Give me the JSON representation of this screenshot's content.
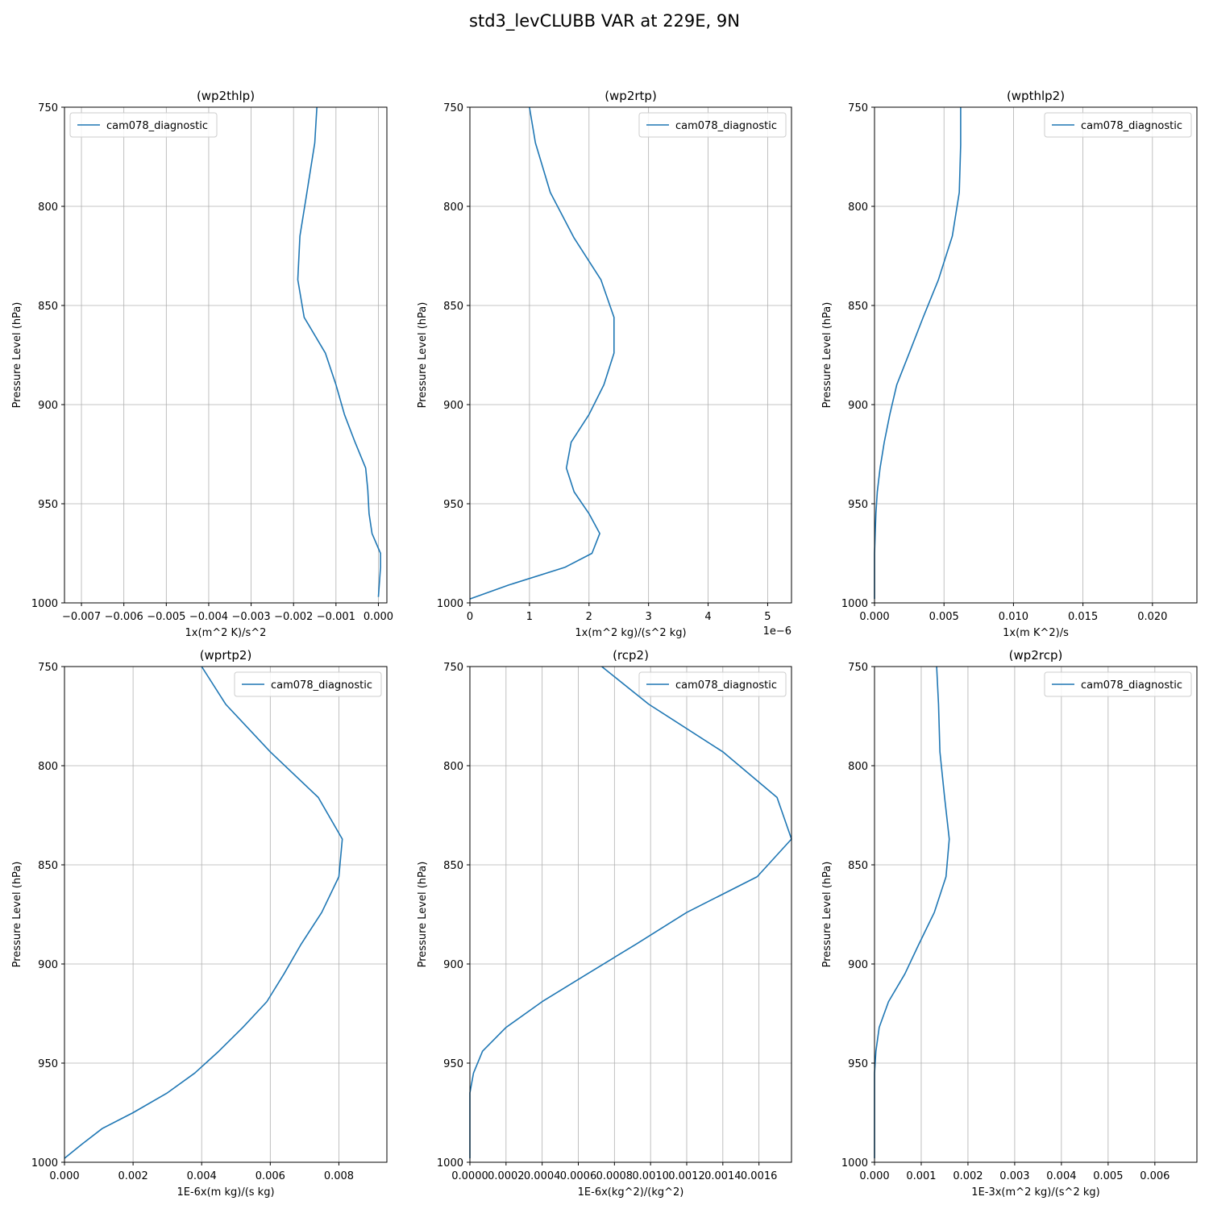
{
  "figure": {
    "title": "std3_levCLUBB VAR at 229E, 9N"
  },
  "chart_data": [
    {
      "type": "line",
      "title": "(wp2thlp)",
      "xlabel": "1x(m^2 K)/s^2",
      "ylabel": "Pressure Level (hPa)",
      "xlim": [
        -0.0074,
        0.0002
      ],
      "ylim": [
        750,
        1000
      ],
      "y_inverted": true,
      "xticks": [
        -0.007,
        -0.006,
        -0.005,
        -0.004,
        -0.003,
        -0.002,
        -0.001,
        0.0
      ],
      "xtick_labels": [
        "−0.007",
        "−0.006",
        "−0.005",
        "−0.004",
        "−0.003",
        "−0.002",
        "−0.001",
        "0.000"
      ],
      "yticks": [
        750,
        800,
        850,
        900,
        950,
        1000
      ],
      "ytick_labels": [
        "750",
        "800",
        "850",
        "900",
        "950",
        "1000"
      ],
      "x_offset_label": "",
      "grid": true,
      "legend": {
        "position": "top-left",
        "entries": [
          "cam078_diagnostic"
        ]
      },
      "series": [
        {
          "name": "cam078_diagnostic",
          "color": "#1f77b4",
          "x": [
            -0.00145,
            -0.0015,
            -0.0017,
            -0.00185,
            -0.0019,
            -0.00175,
            -0.00125,
            -0.001,
            -0.0008,
            -0.00055,
            -0.0003,
            -0.00025,
            -0.00022,
            -0.00015,
            5e-05,
            5e-05,
            0.0
          ],
          "y": [
            750,
            768,
            795,
            815,
            837,
            856,
            874,
            890,
            905,
            919,
            932,
            943,
            955,
            965,
            975,
            982,
            997
          ]
        }
      ]
    },
    {
      "type": "line",
      "title": "(wp2rtp)",
      "xlabel": "1x(m^2 kg)/(s^2 kg)",
      "ylabel": "Pressure Level (hPa)",
      "xlim": [
        0,
        5.4e-06
      ],
      "ylim": [
        750,
        1000
      ],
      "y_inverted": true,
      "xticks": [
        0,
        1e-06,
        2e-06,
        3e-06,
        4e-06,
        5e-06
      ],
      "xtick_labels": [
        "0",
        "1",
        "2",
        "3",
        "4",
        "5"
      ],
      "yticks": [
        750,
        800,
        850,
        900,
        950,
        1000
      ],
      "ytick_labels": [
        "750",
        "800",
        "850",
        "900",
        "950",
        "1000"
      ],
      "x_offset_label": "1e−6",
      "grid": true,
      "legend": {
        "position": "top-right",
        "entries": [
          "cam078_diagnostic"
        ]
      },
      "series": [
        {
          "name": "cam078_diagnostic",
          "color": "#1f77b4",
          "x": [
            1e-06,
            1.1e-06,
            1.35e-06,
            1.75e-06,
            2.2e-06,
            2.42e-06,
            2.42e-06,
            2.25e-06,
            2e-06,
            1.7e-06,
            1.62e-06,
            1.75e-06,
            2e-06,
            2.18e-06,
            2.05e-06,
            1.6e-06,
            6.5e-07,
            0.0
          ],
          "y": [
            750,
            768,
            793,
            816,
            837,
            856,
            874,
            890,
            905,
            919,
            932,
            944,
            955,
            965,
            975,
            982,
            991,
            998
          ]
        }
      ]
    },
    {
      "type": "line",
      "title": "(wpthlp2)",
      "xlabel": "1x(m K^2)/s",
      "ylabel": "Pressure Level (hPa)",
      "xlim": [
        0,
        0.0232
      ],
      "ylim": [
        750,
        1000
      ],
      "y_inverted": true,
      "xticks": [
        0,
        0.005,
        0.01,
        0.015,
        0.02
      ],
      "xtick_labels": [
        "0.000",
        "0.005",
        "0.010",
        "0.015",
        "0.020"
      ],
      "yticks": [
        750,
        800,
        850,
        900,
        950,
        1000
      ],
      "ytick_labels": [
        "750",
        "800",
        "850",
        "900",
        "950",
        "1000"
      ],
      "x_offset_label": "",
      "grid": true,
      "legend": {
        "position": "top-right",
        "entries": [
          "cam078_diagnostic"
        ]
      },
      "series": [
        {
          "name": "cam078_diagnostic",
          "color": "#1f77b4",
          "x": [
            0.0062,
            0.0062,
            0.0061,
            0.0056,
            0.0046,
            0.0035,
            0.0025,
            0.0016,
            0.0011,
            0.0007,
            0.0004,
            0.0002,
            0.0001,
            5e-05,
            0.0,
            0.0
          ],
          "y": [
            750,
            769,
            793,
            815,
            837,
            856,
            874,
            890,
            905,
            919,
            932,
            944,
            955,
            965,
            975,
            998
          ]
        }
      ]
    },
    {
      "type": "line",
      "title": "(wprtp2)",
      "xlabel": "1E-6x(m kg)/(s kg)",
      "ylabel": "Pressure Level (hPa)",
      "xlim": [
        0,
        0.0094
      ],
      "ylim": [
        750,
        1000
      ],
      "y_inverted": true,
      "xticks": [
        0,
        0.002,
        0.004,
        0.006,
        0.008
      ],
      "xtick_labels": [
        "0.000",
        "0.002",
        "0.004",
        "0.006",
        "0.008"
      ],
      "yticks": [
        750,
        800,
        850,
        900,
        950,
        1000
      ],
      "ytick_labels": [
        "750",
        "800",
        "850",
        "900",
        "950",
        "1000"
      ],
      "x_offset_label": "",
      "grid": true,
      "legend": {
        "position": "top-right",
        "entries": [
          "cam078_diagnostic"
        ]
      },
      "series": [
        {
          "name": "cam078_diagnostic",
          "color": "#1f77b4",
          "x": [
            0.004,
            0.0047,
            0.006,
            0.0074,
            0.0081,
            0.008,
            0.0075,
            0.0069,
            0.0064,
            0.0059,
            0.0052,
            0.0045,
            0.0038,
            0.003,
            0.002,
            0.0011,
            0.0005,
            0.0
          ],
          "y": [
            750,
            769,
            793,
            816,
            837,
            856,
            874,
            890,
            905,
            919,
            932,
            944,
            955,
            965,
            975,
            983,
            991,
            998
          ]
        }
      ]
    },
    {
      "type": "line",
      "title": "(rcp2)",
      "xlabel": "1E-6x(kg^2)/(kg^2)",
      "ylabel": "Pressure Level (hPa)",
      "xlim": [
        0,
        0.00178
      ],
      "ylim": [
        750,
        1000
      ],
      "y_inverted": true,
      "xticks": [
        0,
        0.0002,
        0.0004,
        0.0006,
        0.0008,
        0.001,
        0.0012,
        0.0014,
        0.0016
      ],
      "xtick_labels": [
        "0.0000",
        "0.0002",
        "0.0004",
        "0.0006",
        "0.0008",
        "0.0010",
        "0.0012",
        "0.0014",
        "0.0016"
      ],
      "yticks": [
        750,
        800,
        850,
        900,
        950,
        1000
      ],
      "ytick_labels": [
        "750",
        "800",
        "850",
        "900",
        "950",
        "1000"
      ],
      "x_offset_label": "",
      "grid": true,
      "legend": {
        "position": "top-right",
        "entries": [
          "cam078_diagnostic"
        ]
      },
      "series": [
        {
          "name": "cam078_diagnostic",
          "color": "#1f77b4",
          "x": [
            0.00073,
            0.00099,
            0.0014,
            0.0017,
            0.00178,
            0.00159,
            0.0012,
            0.00092,
            0.00065,
            0.0004,
            0.0002,
            7e-05,
            2e-05,
            0.0,
            0.0,
            0.0
          ],
          "y": [
            750,
            769,
            793,
            816,
            837,
            856,
            874,
            890,
            905,
            919,
            932,
            944,
            955,
            965,
            975,
            998
          ]
        }
      ]
    },
    {
      "type": "line",
      "title": "(wp2rcp)",
      "xlabel": "1E-3x(m^2 kg)/(s^2 kg)",
      "ylabel": "Pressure Level (hPa)",
      "xlim": [
        0,
        0.0069
      ],
      "ylim": [
        750,
        1000
      ],
      "y_inverted": true,
      "xticks": [
        0,
        0.001,
        0.002,
        0.003,
        0.004,
        0.005,
        0.006
      ],
      "xtick_labels": [
        "0.000",
        "0.001",
        "0.002",
        "0.003",
        "0.004",
        "0.005",
        "0.006"
      ],
      "yticks": [
        750,
        800,
        850,
        900,
        950,
        1000
      ],
      "ytick_labels": [
        "750",
        "800",
        "850",
        "900",
        "950",
        "1000"
      ],
      "x_offset_label": "",
      "grid": true,
      "legend": {
        "position": "top-right",
        "entries": [
          "cam078_diagnostic"
        ]
      },
      "series": [
        {
          "name": "cam078_diagnostic",
          "color": "#1f77b4",
          "x": [
            0.00133,
            0.00137,
            0.0014,
            0.0015,
            0.0016,
            0.00153,
            0.00128,
            0.00095,
            0.00065,
            0.0003,
            0.0001,
            3e-05,
            0.0,
            0.0,
            0.0
          ],
          "y": [
            750,
            769,
            793,
            816,
            837,
            856,
            874,
            890,
            905,
            919,
            932,
            944,
            955,
            975,
            998
          ]
        }
      ]
    }
  ]
}
